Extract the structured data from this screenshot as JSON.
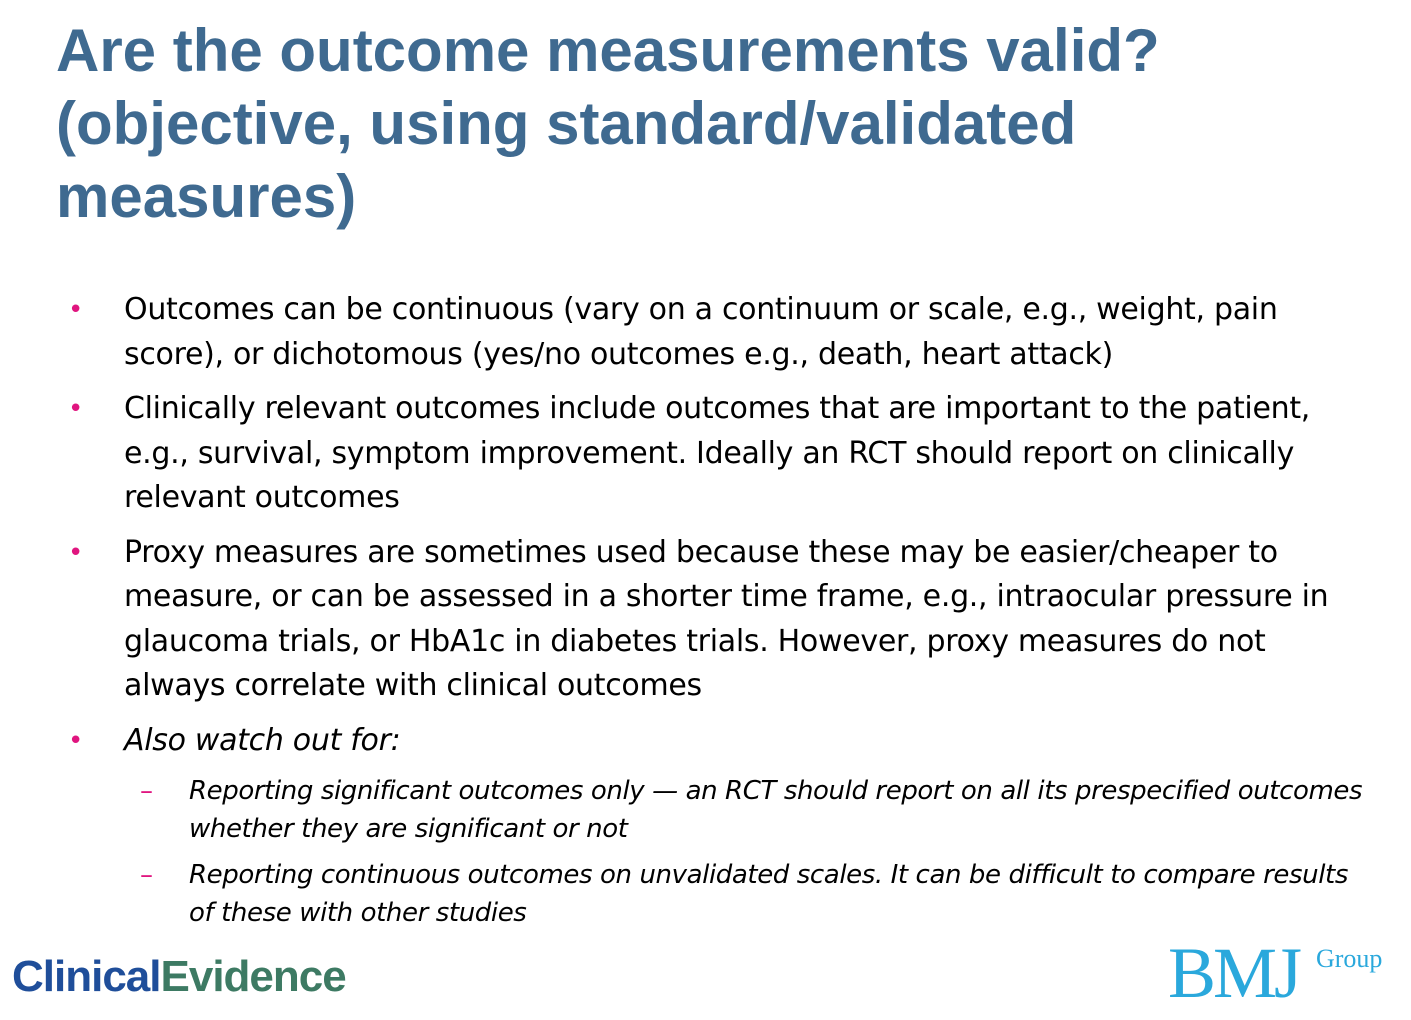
{
  "slide": {
    "title": "Are the outcome measurements valid? (objective, using standard/validated measures)",
    "bullets": [
      {
        "text": "Outcomes can be continuous (vary on a continuum or scale, e.g., weight, pain score), or dichotomous (yes/no outcomes e.g., death, heart attack)"
      },
      {
        "text": "Clinically relevant outcomes include outcomes that are important to the patient, e.g., survival, symptom improvement. Ideally an RCT should report on clinically relevant outcomes"
      },
      {
        "text": "Proxy measures are sometimes used because these may be easier/cheaper to measure, or can be assessed in a shorter time frame, e.g., intraocular pressure in glaucoma trials, or HbA1c in diabetes trials. However, proxy measures do not always correlate with clinical outcomes"
      },
      {
        "text": "Also watch out for:",
        "subbullets": [
          "Reporting significant outcomes only — an RCT should report on all its prespecified outcomes whether they are significant or not",
          "Reporting continuous outcomes on unvalidated scales. It can be difficult to compare results of these with other studies"
        ]
      }
    ]
  },
  "footer": {
    "logo_left_part1": "Clinical",
    "logo_left_part2": "Evidence",
    "logo_right_main": "BMJ",
    "logo_right_sup": "Group"
  },
  "colors": {
    "title": "#3f6a90",
    "bullet_marker": "#e0157f",
    "clinical": "#1f4e9a",
    "evidence": "#3d7a63",
    "bmj": "#2aa8dc"
  }
}
